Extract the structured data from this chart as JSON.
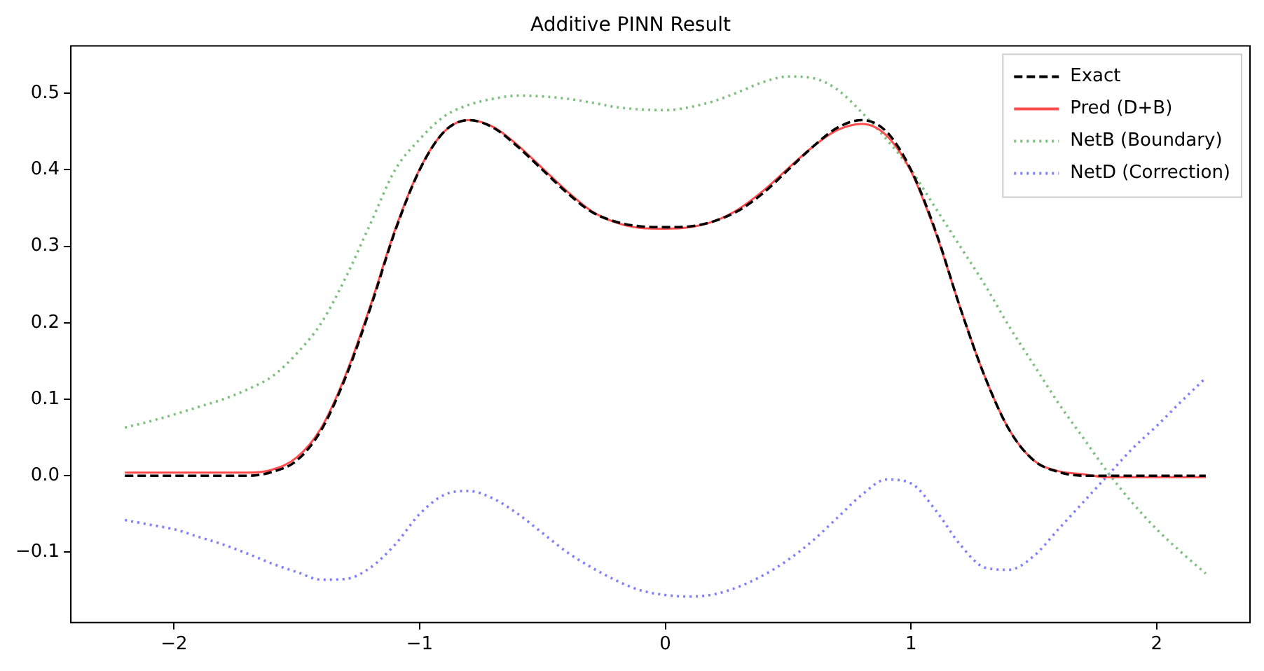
{
  "chart_data": {
    "type": "line",
    "title": "Additive PINN Result",
    "x": [
      -2.2,
      -2.1,
      -2.0,
      -1.9,
      -1.8,
      -1.7,
      -1.6,
      -1.5,
      -1.4,
      -1.3,
      -1.2,
      -1.1,
      -1.0,
      -0.9,
      -0.8,
      -0.7,
      -0.6,
      -0.5,
      -0.4,
      -0.3,
      -0.2,
      -0.1,
      0,
      0.1,
      0.2,
      0.3,
      0.4,
      0.5,
      0.6,
      0.7,
      0.8,
      0.9,
      1.0,
      1.1,
      1.2,
      1.3,
      1.4,
      1.5,
      1.6,
      1.7,
      1.8,
      1.9,
      2.0,
      2.1,
      2.2
    ],
    "series": [
      {
        "name": "Exact",
        "color": "#000000",
        "line_style": "dashed",
        "values": [
          0,
          0,
          0,
          0,
          0,
          0,
          0.005,
          0.02,
          0.06,
          0.13,
          0.22,
          0.32,
          0.4,
          0.45,
          0.465,
          0.455,
          0.43,
          0.4,
          0.37,
          0.345,
          0.332,
          0.326,
          0.325,
          0.326,
          0.333,
          0.347,
          0.37,
          0.4,
          0.43,
          0.455,
          0.465,
          0.45,
          0.4,
          0.32,
          0.22,
          0.13,
          0.06,
          0.02,
          0.005,
          0,
          0,
          0,
          0,
          0,
          0
        ]
      },
      {
        "name": "Pred (D+B)",
        "color": "#ff4d4d",
        "line_style": "solid",
        "values": [
          0.004,
          0.004,
          0.004,
          0.004,
          0.004,
          0.004,
          0.008,
          0.024,
          0.063,
          0.133,
          0.223,
          0.322,
          0.401,
          0.45,
          0.465,
          0.456,
          0.432,
          0.402,
          0.372,
          0.346,
          0.331,
          0.324,
          0.323,
          0.325,
          0.333,
          0.349,
          0.373,
          0.402,
          0.43,
          0.452,
          0.46,
          0.445,
          0.398,
          0.318,
          0.22,
          0.13,
          0.06,
          0.02,
          0.006,
          0.002,
          -0.002,
          -0.002,
          -0.002,
          -0.002,
          -0.002
        ]
      },
      {
        "name": "NetB (Boundary)",
        "color": "#7fbf7f",
        "line_style": "dotted",
        "values": [
          0.063,
          0.071,
          0.08,
          0.09,
          0.1,
          0.113,
          0.13,
          0.16,
          0.2,
          0.26,
          0.33,
          0.4,
          0.44,
          0.47,
          0.485,
          0.493,
          0.497,
          0.496,
          0.493,
          0.488,
          0.482,
          0.479,
          0.478,
          0.482,
          0.49,
          0.502,
          0.515,
          0.522,
          0.52,
          0.505,
          0.475,
          0.44,
          0.4,
          0.35,
          0.3,
          0.25,
          0.195,
          0.145,
          0.095,
          0.05,
          0.005,
          -0.035,
          -0.07,
          -0.1,
          -0.128
        ]
      },
      {
        "name": "NetD (Correction)",
        "color": "#7f7fff",
        "line_style": "dotted",
        "values": [
          -0.058,
          -0.064,
          -0.07,
          -0.08,
          -0.09,
          -0.102,
          -0.115,
          -0.126,
          -0.136,
          -0.135,
          -0.12,
          -0.09,
          -0.05,
          -0.025,
          -0.02,
          -0.03,
          -0.05,
          -0.075,
          -0.1,
          -0.12,
          -0.137,
          -0.15,
          -0.156,
          -0.158,
          -0.155,
          -0.145,
          -0.13,
          -0.11,
          -0.085,
          -0.055,
          -0.025,
          -0.005,
          -0.01,
          -0.045,
          -0.09,
          -0.12,
          -0.123,
          -0.105,
          -0.07,
          -0.035,
          0,
          0.035,
          0.065,
          0.097,
          0.128
        ]
      }
    ],
    "xlim": [
      -2.42,
      2.38
    ],
    "xticks": [
      {
        "value": -2,
        "label": "−2"
      },
      {
        "value": -1,
        "label": "−1"
      },
      0,
      1,
      2
    ],
    "ylim": [
      -0.192,
      0.562
    ],
    "yticks": [
      {
        "value": -0.1,
        "label": "−0.1"
      },
      {
        "value": 0,
        "label": "0.0"
      },
      0.1,
      0.2,
      0.3,
      0.4,
      0.5
    ],
    "grid": false,
    "legend": "top right"
  }
}
